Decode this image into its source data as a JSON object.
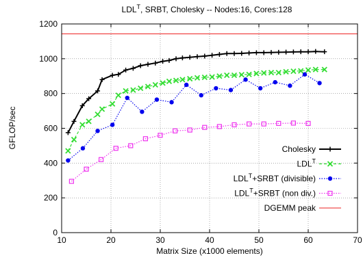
{
  "chart_data": {
    "type": "line",
    "title_parts": [
      "LDL",
      "T",
      ", SRBT, Cholesky  --  Nodes:16, Cores:128"
    ],
    "xlabel": "Matrix Size (x1000 elements)",
    "ylabel": "GFLOP/sec",
    "xlim": [
      10,
      70
    ],
    "ylim": [
      0,
      1200
    ],
    "xticks": [
      10,
      20,
      30,
      40,
      50,
      60,
      70
    ],
    "yticks": [
      0,
      200,
      400,
      600,
      800,
      1000,
      1200
    ],
    "grid": true,
    "legend_position": "bottom-right",
    "series": [
      {
        "name_parts": [
          "Cholesky",
          "",
          ""
        ],
        "color": "#000000",
        "dash": "solid",
        "marker": "plus",
        "x": [
          11.3,
          12.5,
          14.2,
          15.5,
          17.3,
          18.2,
          20.3,
          21.5,
          23.0,
          24.5,
          26.0,
          27.5,
          29.0,
          30.5,
          31.8,
          33.2,
          34.5,
          36.0,
          37.5,
          39.0,
          40.5,
          42.0,
          43.5,
          45.0,
          46.5,
          48.0,
          49.5,
          51.0,
          52.5,
          54.0,
          55.5,
          57.0,
          58.5,
          60.0,
          61.5,
          63.3
        ],
        "y": [
          575,
          640,
          730,
          770,
          815,
          880,
          905,
          910,
          935,
          945,
          960,
          968,
          975,
          985,
          990,
          1000,
          1005,
          1008,
          1012,
          1015,
          1020,
          1025,
          1030,
          1030,
          1031,
          1033,
          1035,
          1035,
          1036,
          1037,
          1038,
          1039,
          1040,
          1040,
          1042,
          1040
        ]
      },
      {
        "name_parts": [
          "LDL",
          "T",
          ""
        ],
        "color": "#33dd33",
        "dash": "dashed",
        "marker": "x",
        "x": [
          11.3,
          12.5,
          14.2,
          15.5,
          17.3,
          18.2,
          20.3,
          21.5,
          23.0,
          24.5,
          26.0,
          27.5,
          29.0,
          30.5,
          31.8,
          33.2,
          34.5,
          36.0,
          37.5,
          39.0,
          40.5,
          42.0,
          43.5,
          45.0,
          46.5,
          48.0,
          49.5,
          51.0,
          52.5,
          54.0,
          55.5,
          57.0,
          58.5,
          60.0,
          61.5,
          63.3
        ],
        "y": [
          470,
          535,
          620,
          640,
          680,
          710,
          740,
          790,
          815,
          820,
          830,
          840,
          850,
          860,
          870,
          875,
          880,
          885,
          890,
          893,
          895,
          900,
          905,
          905,
          908,
          910,
          915,
          918,
          920,
          920,
          925,
          928,
          930,
          935,
          938,
          938
        ]
      },
      {
        "name_parts": [
          "LDL",
          "T",
          "+SRBT (divisible)"
        ],
        "color": "#0000ee",
        "dash": "dotted",
        "marker": "circle",
        "x": [
          11.3,
          14.3,
          17.3,
          20.3,
          23.3,
          26.3,
          29.3,
          32.3,
          35.3,
          38.3,
          41.3,
          44.3,
          47.3,
          50.3,
          53.3,
          56.3,
          59.3,
          62.3
        ],
        "y": [
          415,
          485,
          585,
          620,
          775,
          695,
          765,
          750,
          850,
          790,
          830,
          820,
          880,
          830,
          865,
          845,
          910,
          860
        ]
      },
      {
        "name_parts": [
          "LDL",
          "T",
          "+SRBT (non div.)"
        ],
        "color": "#ee33ee",
        "dash": "dotted",
        "marker": "square",
        "x": [
          12.0,
          15.0,
          18.0,
          21.0,
          24.0,
          27.0,
          30.0,
          33.0,
          36.0,
          39.0,
          42.0,
          45.0,
          48.0,
          51.0,
          54.0,
          57.0,
          60.0
        ],
        "y": [
          295,
          365,
          420,
          485,
          500,
          540,
          560,
          585,
          590,
          605,
          610,
          620,
          625,
          625,
          628,
          630,
          628
        ]
      },
      {
        "name_parts": [
          "DGEMM peak",
          "",
          ""
        ],
        "color": "#ee2222",
        "dash": "solid",
        "marker": "none",
        "x": [
          10,
          70
        ],
        "y": [
          1143,
          1143
        ]
      }
    ]
  }
}
